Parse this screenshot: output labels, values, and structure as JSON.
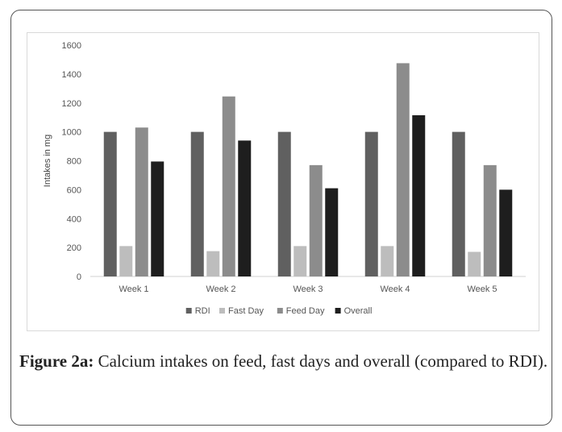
{
  "figure": {
    "caption_label": "Figure 2a:",
    "caption_text": " Calcium intakes on feed, fast days and overall (compared to RDI)."
  },
  "chart_data": {
    "type": "bar",
    "title": "",
    "xlabel": "",
    "ylabel": "Intakes in mg",
    "ylim": [
      0,
      1600
    ],
    "yticks": [
      0,
      200,
      400,
      600,
      800,
      1000,
      1200,
      1400,
      1600
    ],
    "grid": false,
    "legend_position": "bottom",
    "categories": [
      "Week 1",
      "Week 2",
      "Week 3",
      "Week 4",
      "Week 5"
    ],
    "series": [
      {
        "name": "RDI",
        "color": "#606060",
        "values": [
          1000,
          1000,
          1000,
          1000,
          1000
        ]
      },
      {
        "name": "Fast Day",
        "color": "#bdbdbd",
        "values": [
          210,
          175,
          210,
          210,
          170
        ]
      },
      {
        "name": "Feed Day",
        "color": "#8c8c8c",
        "values": [
          1030,
          1245,
          770,
          1475,
          770
        ]
      },
      {
        "name": "Overall",
        "color": "#1e1e1e",
        "values": [
          795,
          940,
          610,
          1115,
          600
        ]
      }
    ]
  }
}
